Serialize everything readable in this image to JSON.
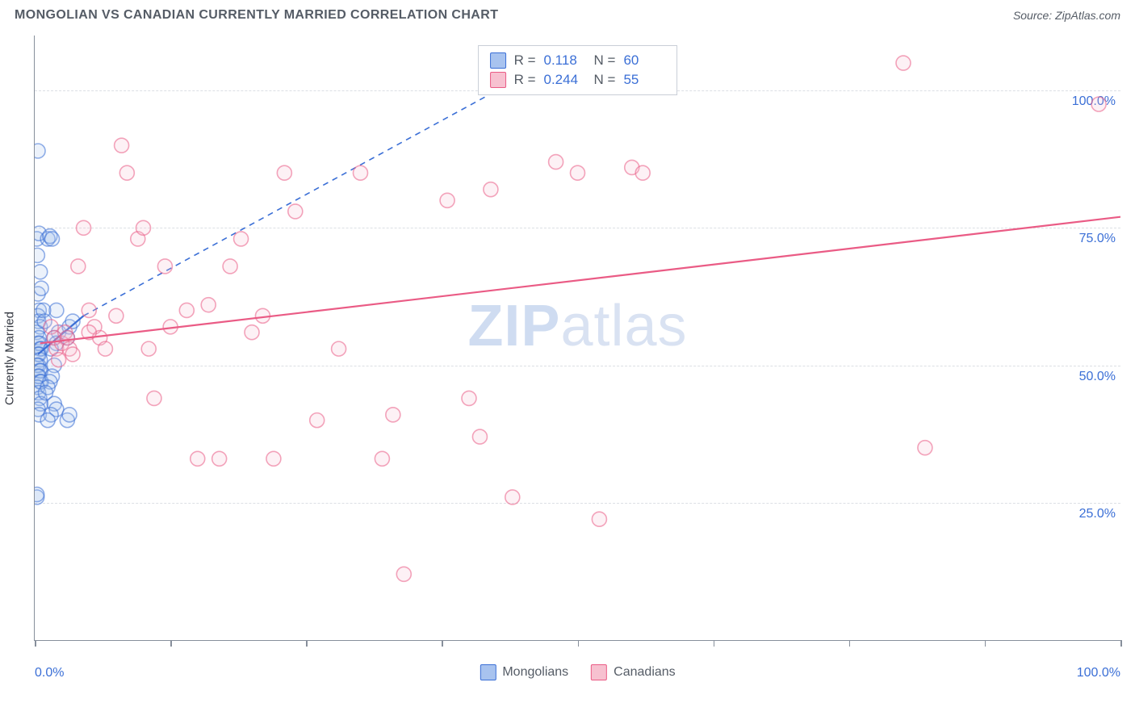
{
  "header": {
    "title": "MONGOLIAN VS CANADIAN CURRENTLY MARRIED CORRELATION CHART",
    "source": "Source: ZipAtlas.com"
  },
  "watermark": {
    "part1": "ZIP",
    "part2": "atlas"
  },
  "chart": {
    "type": "scatter",
    "ylabel": "Currently Married",
    "xlim": [
      0,
      100
    ],
    "ylim": [
      0,
      110
    ],
    "background_color": "#ffffff",
    "grid_color": "#dcdfe4",
    "axis_color": "#878f9b",
    "y_gridlines": [
      25,
      50,
      75,
      100
    ],
    "y_tick_labels": [
      "25.0%",
      "50.0%",
      "75.0%",
      "100.0%"
    ],
    "x_ticks": [
      0,
      12.5,
      25,
      37.5,
      50,
      62.5,
      75,
      87.5,
      100
    ],
    "x_tick_labels": {
      "left": "0.0%",
      "right": "100.0%"
    },
    "marker_radius": 9,
    "marker_stroke_width": 1.6,
    "marker_fill_opacity": 0.22,
    "series": [
      {
        "name": "Mongolians",
        "color_stroke": "#3b6fd6",
        "color_fill": "#a8c3ef",
        "r_value": "0.118",
        "n_value": "60",
        "points": [
          [
            0.2,
            26
          ],
          [
            0.2,
            26.5
          ],
          [
            0.3,
            89
          ],
          [
            0.2,
            73
          ],
          [
            0.4,
            74
          ],
          [
            0.25,
            70
          ],
          [
            0.5,
            67
          ],
          [
            0.3,
            63
          ],
          [
            0.6,
            64
          ],
          [
            0.4,
            60
          ],
          [
            0.3,
            59
          ],
          [
            0.35,
            58
          ],
          [
            0.5,
            57
          ],
          [
            0.2,
            56
          ],
          [
            0.4,
            55
          ],
          [
            0.3,
            54
          ],
          [
            0.45,
            54
          ],
          [
            0.5,
            53
          ],
          [
            0.6,
            53
          ],
          [
            0.3,
            52
          ],
          [
            0.4,
            52
          ],
          [
            0.5,
            51
          ],
          [
            0.35,
            50
          ],
          [
            0.2,
            50
          ],
          [
            0.45,
            49
          ],
          [
            0.55,
            49
          ],
          [
            0.3,
            48
          ],
          [
            0.4,
            48
          ],
          [
            0.5,
            47
          ],
          [
            0.6,
            47
          ],
          [
            0.25,
            46
          ],
          [
            0.35,
            45
          ],
          [
            0.45,
            44
          ],
          [
            0.55,
            43
          ],
          [
            0.3,
            42
          ],
          [
            0.4,
            41
          ],
          [
            1.2,
            73
          ],
          [
            1.4,
            73.5
          ],
          [
            1.6,
            73
          ],
          [
            2.0,
            60
          ],
          [
            2.2,
            56
          ],
          [
            1.8,
            55
          ],
          [
            2.0,
            54
          ],
          [
            1.5,
            53
          ],
          [
            1.8,
            50
          ],
          [
            1.6,
            48
          ],
          [
            1.4,
            47
          ],
          [
            1.2,
            46
          ],
          [
            1.0,
            45
          ],
          [
            1.8,
            43
          ],
          [
            2.0,
            42
          ],
          [
            1.5,
            41
          ],
          [
            1.2,
            40
          ],
          [
            3.0,
            55
          ],
          [
            3.2,
            57
          ],
          [
            3.5,
            58
          ],
          [
            3.0,
            40
          ],
          [
            3.2,
            41
          ],
          [
            0.8,
            60
          ],
          [
            0.9,
            58
          ]
        ],
        "regression": {
          "x1": 0.3,
          "y1": 52,
          "x2": 4.5,
          "y2": 59
        },
        "extrapolation": {
          "x1": 4.5,
          "y1": 59,
          "x2": 50,
          "y2": 108
        }
      },
      {
        "name": "Canadians",
        "color_stroke": "#ea5b85",
        "color_fill": "#f7c1d0",
        "r_value": "0.244",
        "n_value": "55",
        "points": [
          [
            1.5,
            57
          ],
          [
            1.8,
            55
          ],
          [
            2.0,
            53
          ],
          [
            2.2,
            51
          ],
          [
            2.5,
            54
          ],
          [
            2.8,
            56
          ],
          [
            3.0,
            55
          ],
          [
            3.2,
            53
          ],
          [
            3.5,
            52
          ],
          [
            4.0,
            68
          ],
          [
            4.5,
            75
          ],
          [
            5.0,
            60
          ],
          [
            5.5,
            57
          ],
          [
            6.0,
            55
          ],
          [
            7.5,
            59
          ],
          [
            8.0,
            90
          ],
          [
            8.5,
            85
          ],
          [
            9.5,
            73
          ],
          [
            10.0,
            75
          ],
          [
            10.5,
            53
          ],
          [
            11.0,
            44
          ],
          [
            12.0,
            68
          ],
          [
            12.5,
            57
          ],
          [
            14.0,
            60
          ],
          [
            15.0,
            33
          ],
          [
            16.0,
            61
          ],
          [
            17.0,
            33
          ],
          [
            18.0,
            68
          ],
          [
            19.0,
            73
          ],
          [
            20.0,
            56
          ],
          [
            21.0,
            59
          ],
          [
            22.0,
            33
          ],
          [
            23.0,
            85
          ],
          [
            24.0,
            78
          ],
          [
            26.0,
            40
          ],
          [
            28.0,
            53
          ],
          [
            30.0,
            85
          ],
          [
            32.0,
            33
          ],
          [
            33.0,
            41
          ],
          [
            34.0,
            12
          ],
          [
            38.0,
            80
          ],
          [
            40.0,
            44
          ],
          [
            41.0,
            37
          ],
          [
            42.0,
            82
          ],
          [
            44.0,
            26
          ],
          [
            48.0,
            87
          ],
          [
            50.0,
            85
          ],
          [
            52.0,
            22
          ],
          [
            55.0,
            86
          ],
          [
            56.0,
            85
          ],
          [
            80.0,
            105
          ],
          [
            82.0,
            35
          ],
          [
            98.0,
            97.5
          ],
          [
            5.0,
            56
          ],
          [
            6.5,
            53
          ]
        ],
        "regression": {
          "x1": 0.5,
          "y1": 54,
          "x2": 100,
          "y2": 77
        }
      }
    ],
    "legend_bottom": [
      {
        "label": "Mongolians",
        "fill": "#a8c3ef",
        "stroke": "#3b6fd6"
      },
      {
        "label": "Canadians",
        "fill": "#f7c1d0",
        "stroke": "#ea5b85"
      }
    ]
  }
}
